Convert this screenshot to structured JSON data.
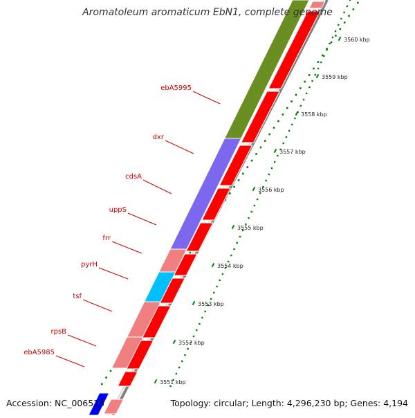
{
  "title": "Aromatoleum aromaticum EbN1, complete genome",
  "footer": {
    "accession": "Accession: NC_006513",
    "summary": "Topology: circular; Length: 4,296,230 bp; Genes: 4,194"
  },
  "colors": {
    "cds": "#ff0000",
    "cds_light": "#f08080",
    "olive": "#6b8e23",
    "slate": "#7b68ee",
    "cyan": "#00bfff",
    "blue": "#0000ff",
    "tick": "#008000",
    "gene_label": "#cc0000",
    "backbone": "#808080"
  },
  "gene_labels": [
    {
      "name": "ebA5995"
    },
    {
      "name": "dxr"
    },
    {
      "name": "cdsA"
    },
    {
      "name": "uppS"
    },
    {
      "name": "frr"
    },
    {
      "name": "pyrH"
    },
    {
      "name": "tsf"
    },
    {
      "name": "rpsB"
    },
    {
      "name": "ebA5985"
    }
  ],
  "scale_labels": [
    "3560 kbp",
    "3559 kbp",
    "3558 kbp",
    "3557 kbp",
    "3556 kbp",
    "3555 kbp",
    "3554 kbp",
    "3553 kbp",
    "3552 kbp",
    "3551 kbp"
  ]
}
